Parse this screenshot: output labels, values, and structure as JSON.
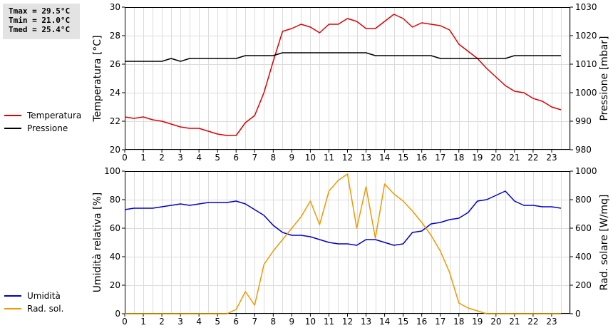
{
  "stats": {
    "tmax": "Tmax = 29.5°C",
    "tmin": "Tmin = 21.0°C",
    "tmed": "Tmed = 25.4°C"
  },
  "chart_data": [
    {
      "type": "line",
      "title": "",
      "xlabel": "",
      "ylabel": "Temperatura [°C]",
      "y2label": "Pressione [mbar]",
      "xlim": [
        0,
        24
      ],
      "ylim": [
        20,
        30
      ],
      "y2lim": [
        980,
        1030
      ],
      "xticks": [
        0,
        1,
        2,
        3,
        4,
        5,
        6,
        7,
        8,
        9,
        10,
        11,
        12,
        13,
        14,
        15,
        16,
        17,
        18,
        19,
        20,
        21,
        22,
        23
      ],
      "yticks": [
        20,
        22,
        24,
        26,
        28,
        30
      ],
      "y2ticks": [
        980,
        990,
        1000,
        1010,
        1020,
        1030
      ],
      "grid": true,
      "legend_placement": "left",
      "series": [
        {
          "name": "Temperatura",
          "axis": "left",
          "color": "#dd0000",
          "x": [
            0,
            0.5,
            1,
            1.5,
            2,
            2.5,
            3,
            3.5,
            4,
            4.5,
            5,
            5.5,
            6,
            6.5,
            7,
            7.5,
            8,
            8.5,
            9,
            9.5,
            10,
            10.5,
            11,
            11.5,
            12,
            12.5,
            13,
            13.5,
            14,
            14.5,
            15,
            15.5,
            16,
            16.5,
            17,
            17.5,
            18,
            18.5,
            19,
            19.5,
            20,
            20.5,
            21,
            21.5,
            22,
            22.5,
            23,
            23.5
          ],
          "values": [
            22.3,
            22.2,
            22.3,
            22.1,
            22.0,
            21.8,
            21.6,
            21.5,
            21.5,
            21.3,
            21.1,
            21.0,
            21.0,
            21.9,
            22.4,
            24.0,
            26.2,
            28.3,
            28.5,
            28.8,
            28.6,
            28.2,
            28.8,
            28.8,
            29.2,
            29.0,
            28.5,
            28.5,
            29.0,
            29.5,
            29.2,
            28.6,
            28.9,
            28.8,
            28.7,
            28.4,
            27.4,
            26.9,
            26.4,
            25.7,
            25.1,
            24.5,
            24.1,
            24.0,
            23.6,
            23.4,
            23.0,
            22.8
          ]
        },
        {
          "name": "Pressione",
          "axis": "right",
          "color": "#000000",
          "x": [
            0,
            0.5,
            1,
            1.5,
            2,
            2.5,
            3,
            3.5,
            4,
            4.5,
            5,
            5.5,
            6,
            6.5,
            7,
            7.5,
            8,
            8.5,
            9,
            9.5,
            10,
            10.5,
            11,
            11.5,
            12,
            12.5,
            13,
            13.5,
            14,
            14.5,
            15,
            15.5,
            16,
            16.5,
            17,
            17.5,
            18,
            18.5,
            19,
            19.5,
            20,
            20.5,
            21,
            21.5,
            22,
            22.5,
            23,
            23.5
          ],
          "values": [
            1011,
            1011,
            1011,
            1011,
            1011,
            1012,
            1011,
            1012,
            1012,
            1012,
            1012,
            1012,
            1012,
            1013,
            1013,
            1013,
            1013,
            1014,
            1014,
            1014,
            1014,
            1014,
            1014,
            1014,
            1014,
            1014,
            1014,
            1013,
            1013,
            1013,
            1013,
            1013,
            1013,
            1013,
            1012,
            1012,
            1012,
            1012,
            1012,
            1012,
            1012,
            1012,
            1013,
            1013,
            1013,
            1013,
            1013,
            1013
          ]
        }
      ]
    },
    {
      "type": "line",
      "title": "",
      "xlabel": "",
      "ylabel": "Umidità relativa [%]",
      "y2label": "Rad. solare [W/mq]",
      "xlim": [
        0,
        24
      ],
      "ylim": [
        0,
        100
      ],
      "y2lim": [
        0,
        1000
      ],
      "xticks": [
        0,
        1,
        2,
        3,
        4,
        5,
        6,
        7,
        8,
        9,
        10,
        11,
        12,
        13,
        14,
        15,
        16,
        17,
        18,
        19,
        20,
        21,
        22,
        23
      ],
      "yticks": [
        0,
        20,
        40,
        60,
        80,
        100
      ],
      "y2ticks": [
        0,
        200,
        400,
        600,
        800,
        1000
      ],
      "grid": true,
      "legend_placement": "left",
      "series": [
        {
          "name": "Umidità",
          "axis": "left",
          "color": "#0000cc",
          "x": [
            0,
            0.5,
            1,
            1.5,
            2,
            2.5,
            3,
            3.5,
            4,
            4.5,
            5,
            5.5,
            6,
            6.5,
            7,
            7.5,
            8,
            8.5,
            9,
            9.5,
            10,
            10.5,
            11,
            11.5,
            12,
            12.5,
            13,
            13.5,
            14,
            14.5,
            15,
            15.5,
            16,
            16.5,
            17,
            17.5,
            18,
            18.5,
            19,
            19.5,
            20,
            20.5,
            21,
            21.5,
            22,
            22.5,
            23,
            23.5
          ],
          "values": [
            73,
            74,
            74,
            74,
            75,
            76,
            77,
            76,
            77,
            78,
            78,
            78,
            79,
            77,
            73,
            69,
            62,
            57,
            55,
            55,
            54,
            52,
            50,
            49,
            49,
            48,
            52,
            52,
            50,
            48,
            49,
            57,
            58,
            63,
            64,
            66,
            67,
            71,
            79,
            80,
            83,
            86,
            79,
            76,
            76,
            75,
            75,
            74
          ]
        },
        {
          "name": "Rad. sol.",
          "axis": "right",
          "color": "#ee9900",
          "x": [
            0,
            0.5,
            1,
            1.5,
            2,
            2.5,
            3,
            3.5,
            4,
            4.5,
            5,
            5.5,
            6,
            6.5,
            7,
            7.5,
            8,
            8.5,
            9,
            9.5,
            10,
            10.5,
            11,
            11.5,
            12,
            12.5,
            13,
            13.5,
            14,
            14.5,
            15,
            15.5,
            16,
            16.5,
            17,
            17.5,
            18,
            18.5,
            19,
            19.5,
            20,
            20.5,
            21,
            21.5,
            22,
            22.5,
            23,
            23.5
          ],
          "values": [
            0,
            0,
            0,
            0,
            0,
            0,
            0,
            0,
            0,
            0,
            0,
            0,
            30,
            155,
            60,
            345,
            440,
            520,
            600,
            680,
            790,
            625,
            860,
            935,
            980,
            600,
            890,
            530,
            910,
            840,
            790,
            720,
            640,
            550,
            440,
            290,
            75,
            40,
            20,
            0,
            0,
            0,
            0,
            0,
            0,
            0,
            0,
            0
          ]
        }
      ]
    }
  ]
}
